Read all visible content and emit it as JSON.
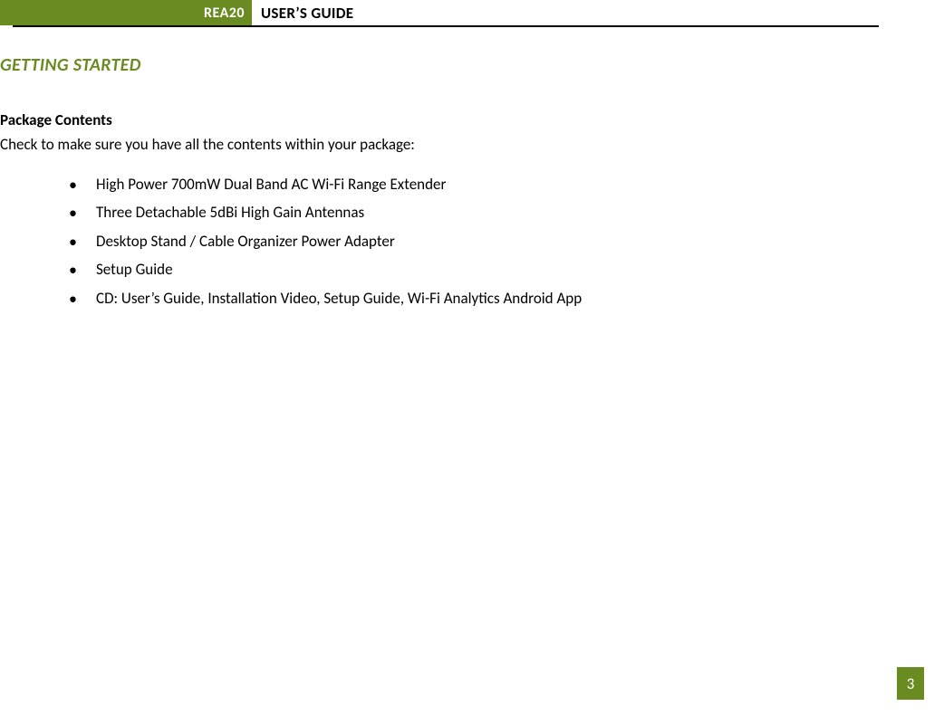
{
  "header": {
    "product_code": "REA20",
    "title": "USER’S GUIDE"
  },
  "colors": {
    "accent_green": "#6a8a22",
    "text": "#000000",
    "background": "#ffffff"
  },
  "section_heading": "GETTING STARTED",
  "package": {
    "subheading": "Package Contents",
    "intro": "Check to make sure you have all the contents within your package:",
    "items": [
      "High Power 700mW Dual Band AC Wi-Fi Range Extender",
      "Three Detachable 5dBi High Gain Antennas",
      "Desktop Stand / Cable Organizer Power Adapter",
      "Setup Guide",
      "CD: User’s Guide, Installation Video, Setup Guide, Wi-Fi Analytics Android App"
    ]
  },
  "page_number": "3"
}
